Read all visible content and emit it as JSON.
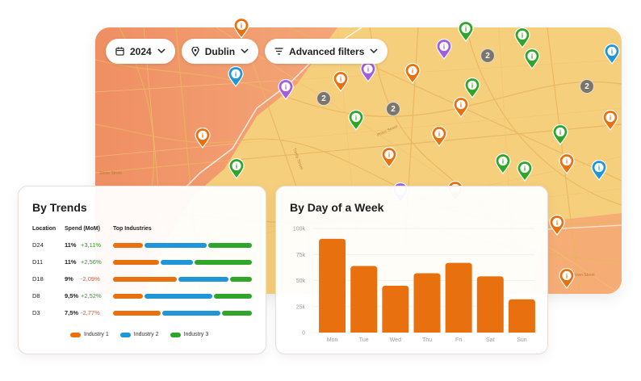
{
  "colors": {
    "orange": "#e8700f",
    "blue": "#1e96d8",
    "green": "#2fa52a",
    "purple": "#a35be0",
    "map_left": "#f2a071",
    "map_right": "#f6cf7c"
  },
  "toolbar": {
    "year": {
      "label": "2024",
      "icon": "calendar-icon"
    },
    "city": {
      "label": "Dublin",
      "icon": "location-icon"
    },
    "filters": {
      "label": "Advanced filters",
      "icon": "filter-icon"
    }
  },
  "map": {
    "pin_label": "i",
    "cluster_label": "2",
    "street_labels": [
      "Phibs Street",
      "Trinity Street",
      "Stone Street",
      "Palmerstown Street"
    ]
  },
  "trends": {
    "title": "By Trends",
    "headers": {
      "location": "Location",
      "spend": "Spend (MoM)",
      "industries": "Top Industries"
    },
    "rows": [
      {
        "location": "D24",
        "spend": "11%",
        "delta": "+3,11%",
        "trend": "pos",
        "shares": [
          0.22,
          0.46,
          0.32
        ]
      },
      {
        "location": "D11",
        "spend": "11%",
        "delta": "+2,56%",
        "trend": "pos",
        "shares": [
          0.34,
          0.24,
          0.42
        ]
      },
      {
        "location": "D18",
        "spend": "9%",
        "delta": "-2,09%",
        "trend": "neg",
        "shares": [
          0.47,
          0.37,
          0.16
        ]
      },
      {
        "location": "D8",
        "spend": "9,5%",
        "delta": "+2,52%",
        "trend": "pos",
        "shares": [
          0.22,
          0.5,
          0.28
        ]
      },
      {
        "location": "D3",
        "spend": "7,5%",
        "delta": "-2,77%",
        "trend": "neg",
        "shares": [
          0.35,
          0.43,
          0.22
        ]
      }
    ],
    "legend": [
      "Industry 1",
      "Industry 2",
      "Industry 3"
    ]
  },
  "chart_data": {
    "type": "bar",
    "title": "By Day of a Week",
    "categories": [
      "Mon",
      "Tue",
      "Wed",
      "Thu",
      "Fri",
      "Sat",
      "Sun"
    ],
    "values": [
      90000,
      64000,
      45000,
      57000,
      67000,
      54000,
      32000
    ],
    "yticks": [
      "0",
      "25k",
      "50k",
      "75k",
      "100k"
    ],
    "ylim": [
      0,
      100000
    ],
    "grid": true,
    "xlabel": "",
    "ylabel": ""
  }
}
